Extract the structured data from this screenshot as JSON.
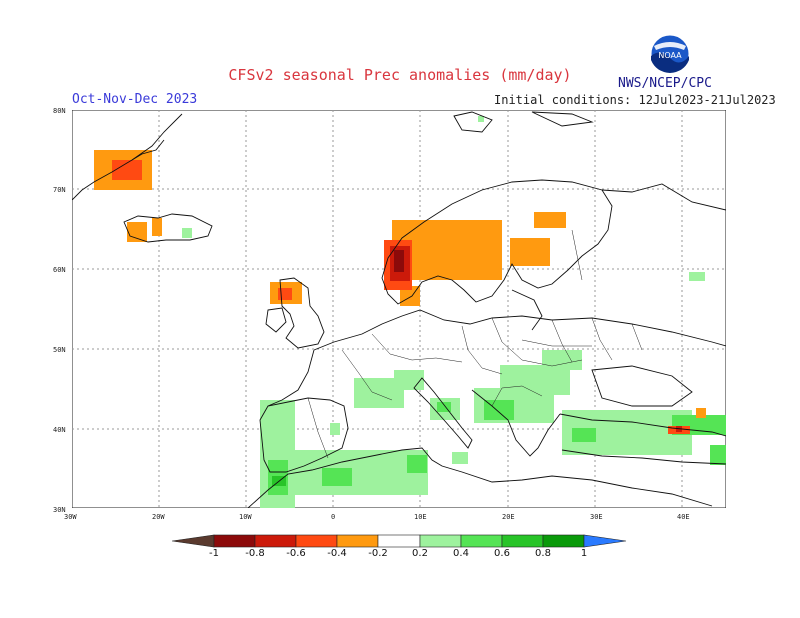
{
  "title": "CFSv2 seasonal Prec anomalies (mm/day)",
  "season": "Oct-Nov-Dec 2023",
  "initial_conditions": "Initial conditions: 12Jul2023-21Jul2023",
  "agency": "NWS/NCEP/CPC",
  "logo_text": "NOAA",
  "lat_ticks": [
    "80N",
    "70N",
    "60N",
    "50N",
    "40N",
    "30N"
  ],
  "lon_ticks": [
    "30W",
    "20W",
    "10W",
    "0",
    "10E",
    "20E",
    "30E",
    "40E"
  ],
  "colorbar_labels": [
    "-1",
    "-0.8",
    "-0.6",
    "-0.4",
    "-0.2",
    "0.2",
    "0.4",
    "0.6",
    "0.8",
    "1"
  ],
  "colors": {
    "neg_1": "#5a3a2e",
    "neg_08": "#8c0a0a",
    "neg_06": "#cc1a0a",
    "neg_04": "#ff4a12",
    "neg_02": "#ff9a10",
    "pos_02": "#9ef29e",
    "pos_04": "#55e455",
    "pos_06": "#28c428",
    "pos_08": "#0a9a0a",
    "pos_1": "#2a7aff"
  }
}
